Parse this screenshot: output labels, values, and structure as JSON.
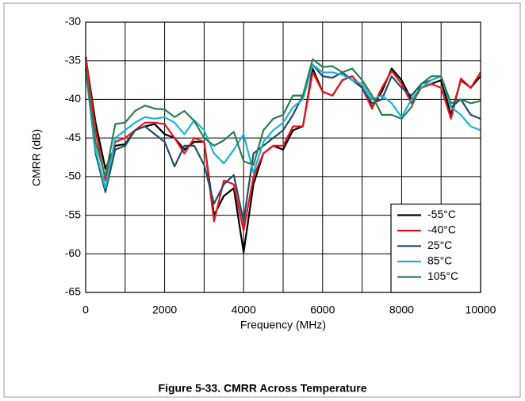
{
  "chart_data": {
    "type": "line",
    "caption": "Figure 5-33. CMRR Across Temperature",
    "xlabel": "Frequency (MHz)",
    "ylabel": "CMRR (dB)",
    "x": [
      0,
      250,
      500,
      750,
      1000,
      1250,
      1500,
      1750,
      2000,
      2250,
      2500,
      2750,
      3000,
      3250,
      3500,
      3750,
      4000,
      4250,
      4500,
      4750,
      5000,
      5250,
      5500,
      5750,
      6000,
      6250,
      6500,
      6750,
      7000,
      7250,
      7500,
      7750,
      8000,
      8250,
      8500,
      8750,
      9000,
      9250,
      9500,
      9750,
      10000
    ],
    "series": [
      {
        "name": "-55°C",
        "color": "#000000",
        "values": [
          -34.5,
          -43,
          -49,
          -46,
          -45.8,
          -44,
          -43.5,
          -43.2,
          -44.5,
          -45,
          -46.5,
          -45.5,
          -45.5,
          -55,
          -52.5,
          -51.5,
          -59.8,
          -51,
          -47,
          -46,
          -46.5,
          -44,
          -43.5,
          -36,
          -39,
          -39.5,
          -37.5,
          -37,
          -38.5,
          -41,
          -39,
          -36,
          -37.5,
          -40,
          -38.5,
          -38,
          -37.5,
          -42,
          -37.5,
          -38.5,
          -37
        ]
      },
      {
        "name": "-40°C",
        "color": "#e8141c",
        "values": [
          -34.5,
          -44,
          -50.5,
          -45.5,
          -45,
          -44,
          -43,
          -43,
          -43.2,
          -45,
          -47,
          -45,
          -45.5,
          -55.8,
          -50.5,
          -51,
          -57,
          -50,
          -47,
          -46,
          -46,
          -43.5,
          -43.5,
          -36.5,
          -39,
          -39.5,
          -37.5,
          -37,
          -38.5,
          -41.2,
          -38.5,
          -36.3,
          -38,
          -40.5,
          -38.5,
          -38,
          -38.5,
          -42.5,
          -37.3,
          -38.5,
          -36.5
        ]
      },
      {
        "name": "25°C",
        "color": "#1f4e6b",
        "values": [
          -36,
          -47,
          -52,
          -46.5,
          -46,
          -44,
          -43.5,
          -44.5,
          -45.5,
          -48.7,
          -46,
          -46,
          -48.5,
          -53.5,
          -51,
          -49.8,
          -55.8,
          -47,
          -46,
          -45,
          -44,
          -42,
          -39.5,
          -35.5,
          -37,
          -37.2,
          -36.5,
          -37.5,
          -38.5,
          -40.5,
          -40,
          -37,
          -38.5,
          -39.5,
          -38,
          -37.5,
          -37,
          -41,
          -40,
          -42,
          -42.5
        ]
      },
      {
        "name": "85°C",
        "color": "#1ab4d4",
        "values": [
          -36,
          -46.5,
          -51.5,
          -45,
          -44,
          -43,
          -42.3,
          -42.5,
          -42.3,
          -43,
          -44.5,
          -42.7,
          -44,
          -47,
          -48.3,
          -46.5,
          -44.5,
          -49.5,
          -45.5,
          -44,
          -43,
          -41,
          -40,
          -35.5,
          -36.5,
          -36.5,
          -36.8,
          -37.5,
          -38,
          -40,
          -39.5,
          -40.5,
          -42.3,
          -40,
          -38.5,
          -37.5,
          -37,
          -41,
          -42,
          -43.5,
          -44
        ]
      },
      {
        "name": "105°C",
        "color": "#2e7d4f",
        "values": [
          -36,
          -45.5,
          -50,
          -43.2,
          -43,
          -41.5,
          -40.8,
          -41.2,
          -41.3,
          -42.3,
          -41.5,
          -42.8,
          -45,
          -46,
          -45.3,
          -44.2,
          -48,
          -48.5,
          -44,
          -42.5,
          -42,
          -39.5,
          -39.5,
          -34.8,
          -35.8,
          -35.7,
          -36.5,
          -36,
          -37.5,
          -39.5,
          -42,
          -42,
          -42.5,
          -41,
          -38,
          -37,
          -37,
          -40.5,
          -40,
          -40.5,
          -40.2
        ]
      }
    ],
    "xlim": [
      0,
      10000
    ],
    "ylim": [
      -65,
      -30
    ],
    "xticks": [
      0,
      2000,
      4000,
      6000,
      8000,
      10000
    ],
    "xminor_grid": [
      1000,
      3000,
      5000,
      7000,
      9000
    ],
    "yticks": [
      -30,
      -35,
      -40,
      -45,
      -50,
      -55,
      -60,
      -65
    ],
    "grid": true,
    "legend": "lower right"
  }
}
